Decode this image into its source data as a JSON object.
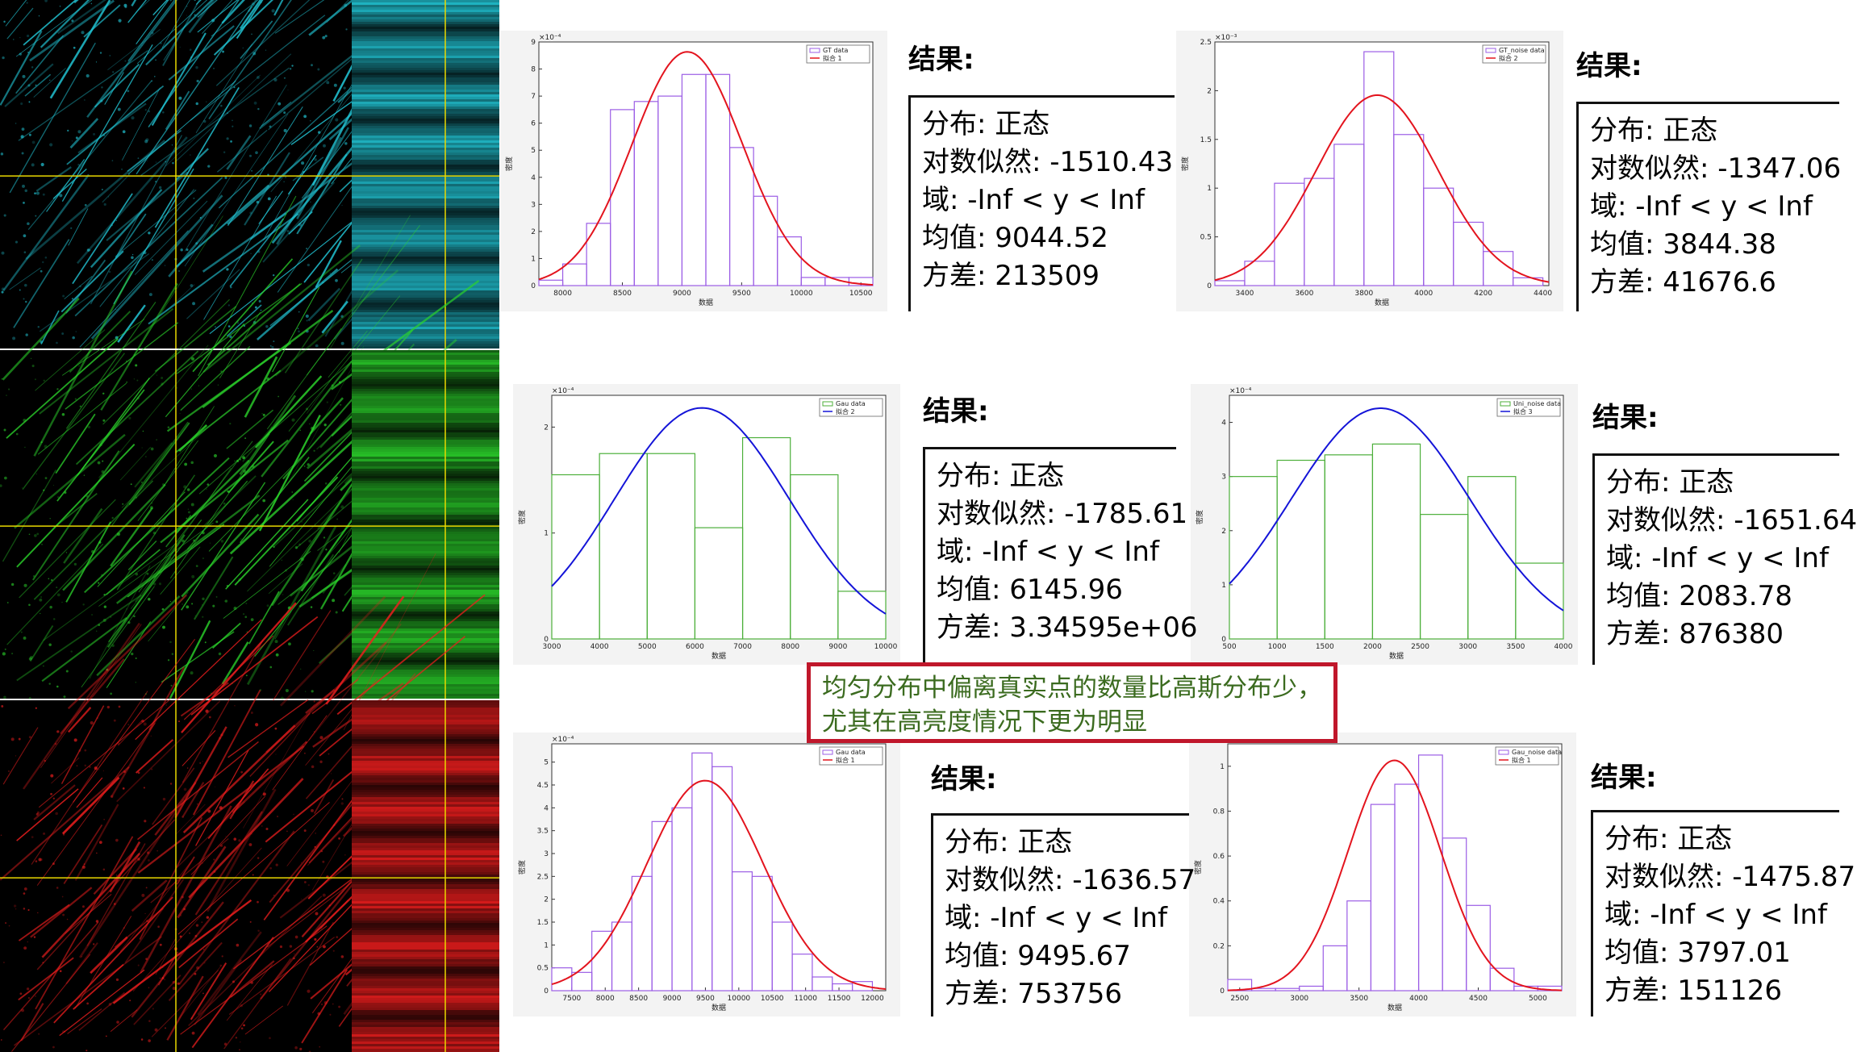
{
  "micro_images": [
    {
      "name": "cyan-channel",
      "color": "#22c8d8"
    },
    {
      "name": "green-channel",
      "color": "#2bd42b"
    },
    {
      "name": "red-channel",
      "color": "#f01e1e"
    }
  ],
  "note_text": "均匀分布中偏离真实点的数量比高斯分布少，尤其在高亮度情况下更为明显",
  "panels": [
    {
      "result_title": "结果:",
      "lines": [
        "分布: 正态",
        "对数似然: -1510.43",
        "域: -Inf < y < Inf",
        "均值: 9044.52",
        "方差: 213509"
      ]
    },
    {
      "result_title": "结果:",
      "lines": [
        "分布: 正态",
        "对数似然: -1347.06",
        "域: -Inf < y < Inf",
        "均值: 3844.38",
        "方差: 41676.6"
      ]
    },
    {
      "result_title": "结果:",
      "lines": [
        "分布: 正态",
        "对数似然: -1785.61",
        "域: -Inf < y < Inf",
        "均值: 6145.96",
        "方差: 3.34595e+06"
      ]
    },
    {
      "result_title": "结果:",
      "lines": [
        "分布: 正态",
        "对数似然: -1651.64",
        "域: -Inf < y < Inf",
        "均值: 2083.78",
        "方差: 876380"
      ]
    },
    {
      "result_title": "结果:",
      "lines": [
        "分布: 正态",
        "对数似然: -1636.57",
        "域: -Inf < y < Inf",
        "均值: 9495.67",
        "方差: 753756"
      ]
    },
    {
      "result_title": "结果:",
      "lines": [
        "分布: 正态",
        "对数似然: -1475.87",
        "域: -Inf < y < Inf",
        "均值: 3797.01",
        "方差: 151126"
      ]
    }
  ],
  "chart_data": [
    {
      "type": "bar",
      "exponent": "×10⁻⁴",
      "xlabel": "数据",
      "ylabel": "密度",
      "xlim": [
        7800,
        10600
      ],
      "ylim": [
        0,
        9
      ],
      "xticks": [
        8000,
        8500,
        9000,
        9500,
        10000,
        10500
      ],
      "yticks": [
        0,
        1,
        2,
        3,
        4,
        5,
        6,
        7,
        8,
        9
      ],
      "bin_edges": [
        7800,
        8000,
        8200,
        8400,
        8600,
        8800,
        9000,
        9200,
        9400,
        9600,
        9800,
        10000,
        10200,
        10400,
        10600
      ],
      "values": [
        0.2,
        0.8,
        2.3,
        6.5,
        6.8,
        7.0,
        7.8,
        7.8,
        5.1,
        3.3,
        1.8,
        0.3,
        0.3,
        0.3
      ],
      "hist_color": "#9b5de5",
      "fit": {
        "mean": 9044.52,
        "variance": 213509,
        "color": "#e3141e"
      },
      "legend": [
        "GT data",
        "拟合 1"
      ]
    },
    {
      "type": "bar",
      "exponent": "×10⁻³",
      "xlabel": "数据",
      "ylabel": "密度",
      "xlim": [
        3300,
        4420
      ],
      "ylim": [
        0,
        2.5
      ],
      "xticks": [
        3400,
        3600,
        3800,
        4000,
        4200,
        4400
      ],
      "yticks": [
        0,
        0.5,
        1,
        1.5,
        2,
        2.5
      ],
      "bin_edges": [
        3300,
        3400,
        3500,
        3600,
        3700,
        3800,
        3900,
        4000,
        4100,
        4200,
        4300,
        4400
      ],
      "values": [
        0.05,
        0.25,
        1.05,
        1.1,
        1.45,
        2.4,
        1.55,
        1.0,
        0.65,
        0.35,
        0.08
      ],
      "hist_color": "#9b5de5",
      "fit": {
        "mean": 3844.38,
        "variance": 41676.6,
        "color": "#e3141e"
      },
      "legend": [
        "GT_noise data",
        "拟合 2"
      ]
    },
    {
      "type": "bar",
      "exponent": "×10⁻⁴",
      "xlabel": "数据",
      "ylabel": "密度",
      "xlim": [
        3000,
        10000
      ],
      "ylim": [
        0,
        2.3
      ],
      "xticks": [
        3000,
        4000,
        5000,
        6000,
        7000,
        8000,
        9000,
        10000
      ],
      "yticks": [
        0,
        1,
        2
      ],
      "bin_edges": [
        3000,
        4000,
        5000,
        6000,
        7000,
        8000,
        9000,
        10000
      ],
      "values": [
        1.55,
        1.75,
        1.75,
        1.05,
        1.9,
        1.55,
        0.45
      ],
      "hist_color": "#4caf3a",
      "fit": {
        "mean": 6145.96,
        "variance": 3345950,
        "color": "#1414d8"
      },
      "legend": [
        "Gau data",
        "拟合 2"
      ]
    },
    {
      "type": "bar",
      "exponent": "×10⁻⁴",
      "xlabel": "数据",
      "ylabel": "密度",
      "xlim": [
        500,
        4000
      ],
      "ylim": [
        0,
        4.5
      ],
      "xticks": [
        500,
        1000,
        1500,
        2000,
        2500,
        3000,
        3500,
        4000
      ],
      "yticks": [
        0,
        1,
        2,
        3,
        4
      ],
      "bin_edges": [
        500,
        1000,
        1500,
        2000,
        2500,
        3000,
        3500,
        4000
      ],
      "values": [
        3.0,
        3.3,
        3.4,
        3.6,
        2.3,
        3.0,
        1.4
      ],
      "hist_color": "#4caf3a",
      "fit": {
        "mean": 2083.78,
        "variance": 876380,
        "color": "#1414d8"
      },
      "legend": [
        "Uni_noise data",
        "拟合 3"
      ]
    },
    {
      "type": "bar",
      "exponent": "×10⁻⁴",
      "xlabel": "数据",
      "ylabel": "密度",
      "xlim": [
        7200,
        12200
      ],
      "ylim": [
        0,
        5.4
      ],
      "xticks": [
        7500,
        8000,
        8500,
        9000,
        9500,
        10000,
        10500,
        11000,
        11500,
        12000
      ],
      "yticks": [
        0,
        0.5,
        1,
        1.5,
        2,
        2.5,
        3,
        3.5,
        4,
        4.5,
        5
      ],
      "bin_edges": [
        7200,
        7500,
        7800,
        8100,
        8400,
        8700,
        9000,
        9300,
        9600,
        9900,
        10200,
        10500,
        10800,
        11100,
        11400,
        11700,
        12000
      ],
      "values": [
        0.5,
        0.4,
        1.3,
        1.5,
        2.5,
        3.7,
        4.0,
        5.2,
        4.9,
        2.6,
        2.5,
        1.5,
        0.8,
        0.3,
        0.15,
        0.2
      ],
      "hist_color": "#9b5de5",
      "fit": {
        "mean": 9495.67,
        "variance": 753756,
        "color": "#e3141e"
      },
      "legend": [
        "Gau data",
        "拟合 1"
      ]
    },
    {
      "type": "bar",
      "exponent": "",
      "xlabel": "数据",
      "ylabel": "密度",
      "xlim": [
        2400,
        5200
      ],
      "ylim": [
        0,
        1.1
      ],
      "xticks": [
        2500,
        3000,
        3500,
        4000,
        4500,
        5000
      ],
      "yticks": [
        0,
        0.2,
        0.4,
        0.6,
        0.8,
        1
      ],
      "bin_edges": [
        2400,
        2600,
        2800,
        3000,
        3200,
        3400,
        3600,
        3800,
        4000,
        4200,
        4400,
        4600,
        4800,
        5000,
        5200
      ],
      "values": [
        0.05,
        0.01,
        0.01,
        0.02,
        0.2,
        0.4,
        0.83,
        0.92,
        1.05,
        0.68,
        0.38,
        0.1,
        0.02,
        0.02
      ],
      "hist_color": "#9b5de5",
      "fit": {
        "mean": 3797.01,
        "variance": 151126,
        "color": "#e3141e"
      },
      "legend": [
        "Gau_noise data",
        "拟合 1"
      ]
    }
  ]
}
